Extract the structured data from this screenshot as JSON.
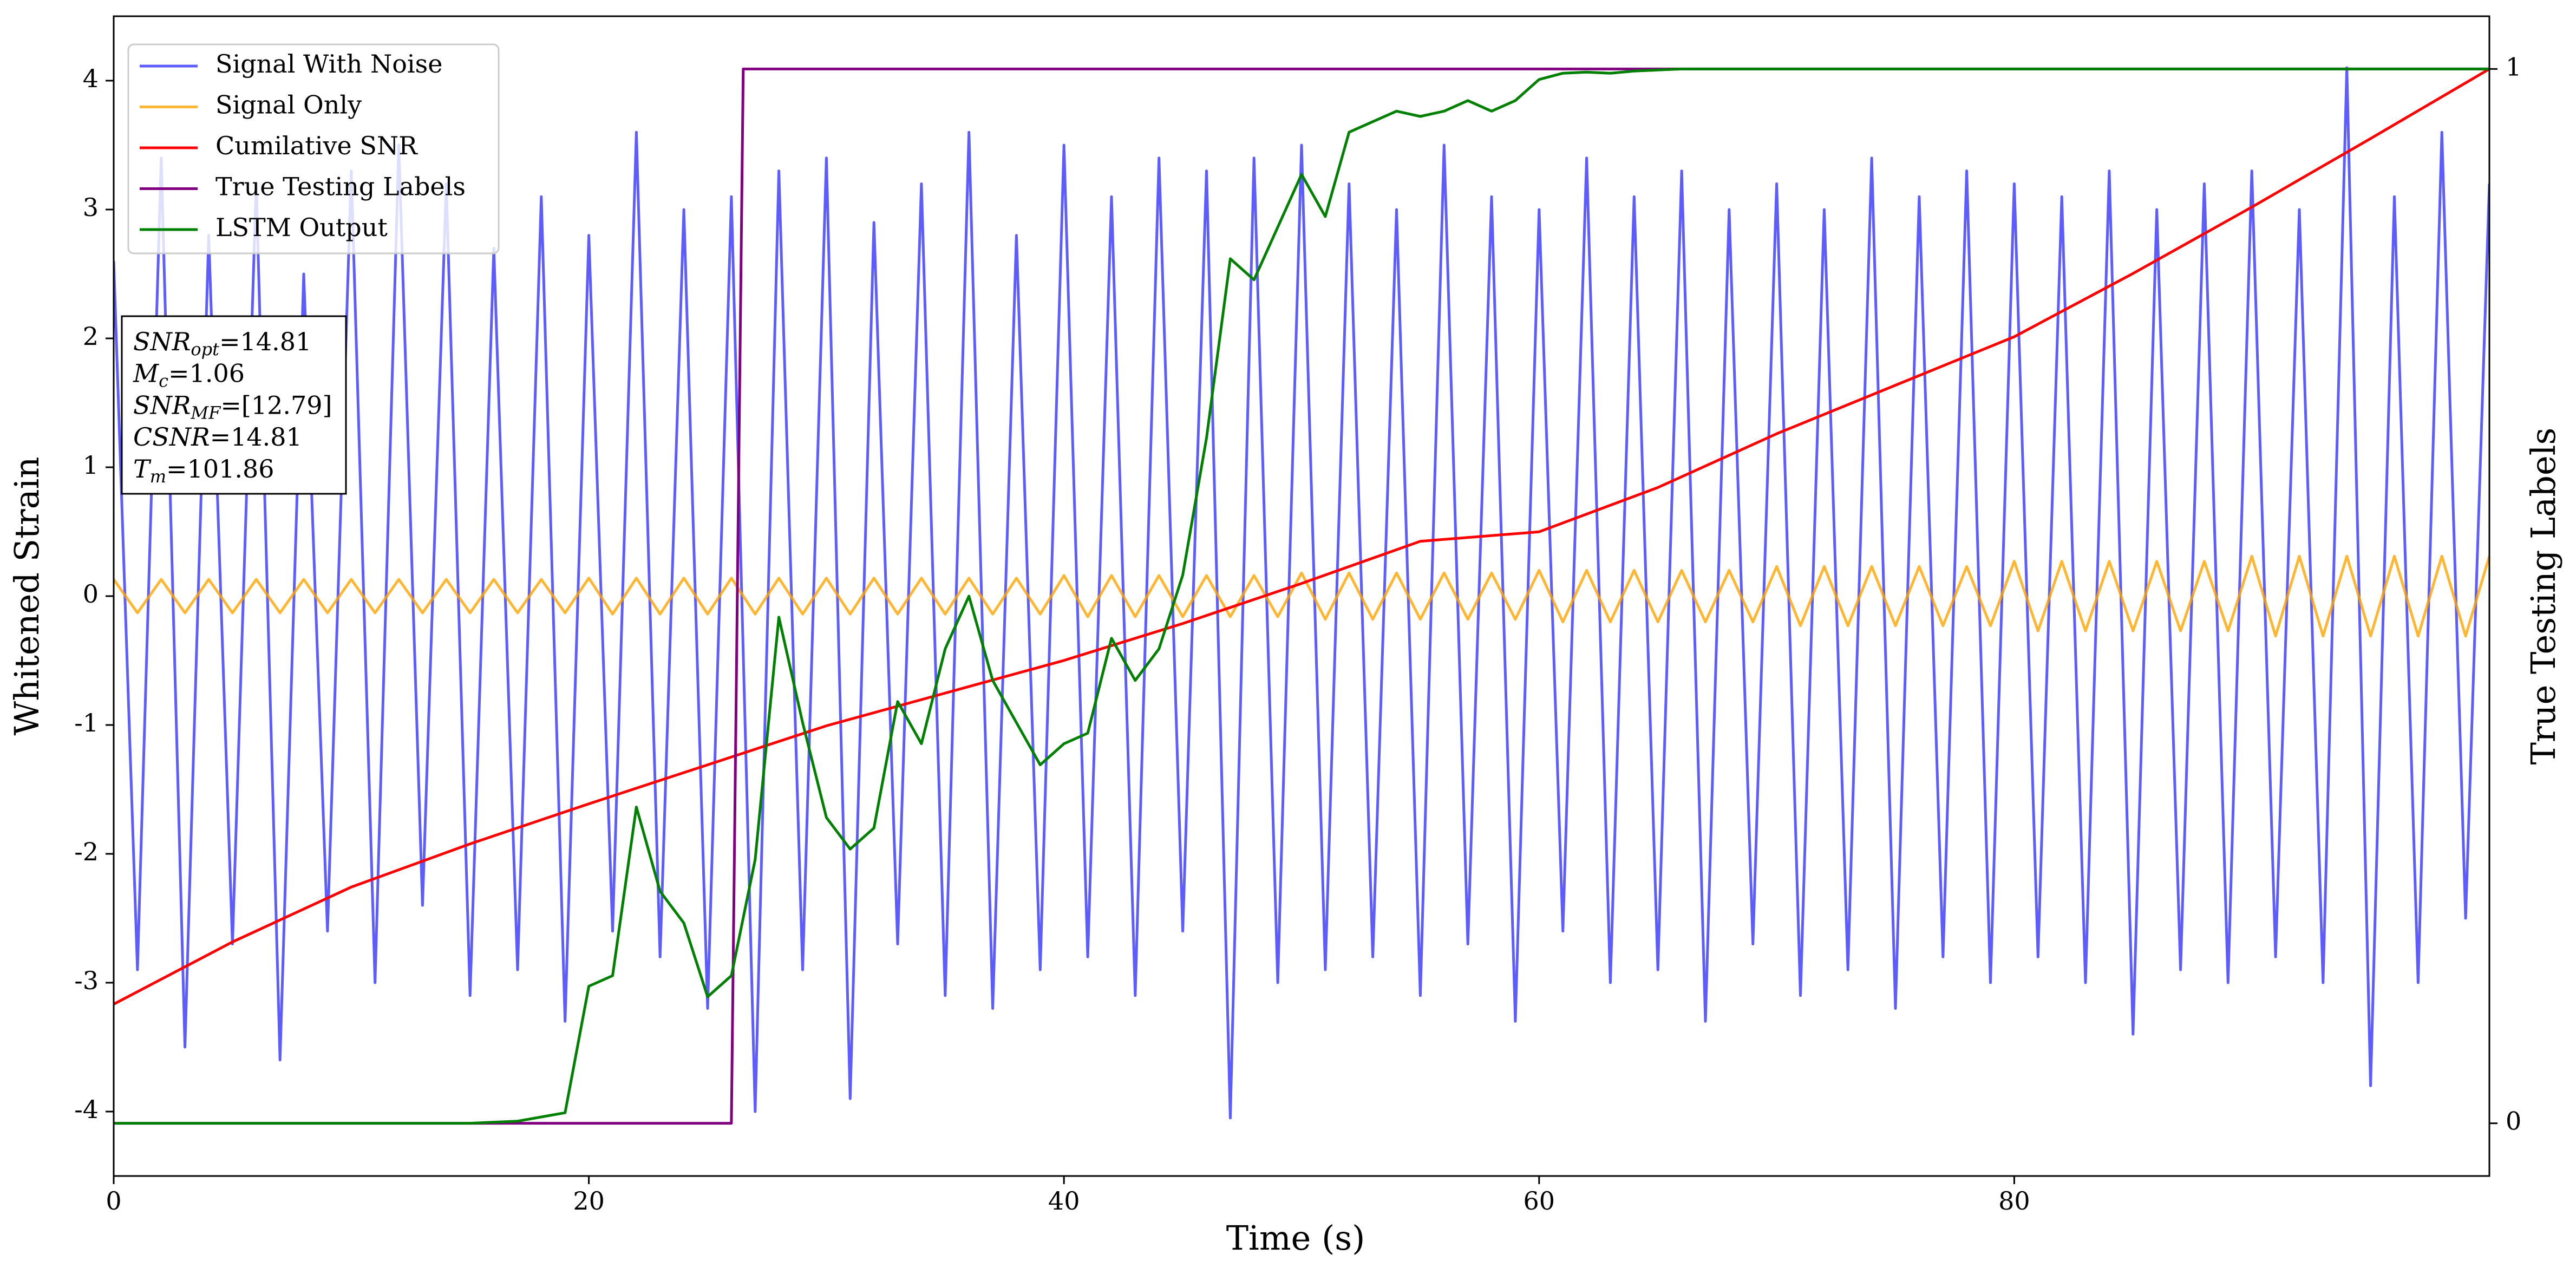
{
  "chart_data": {
    "type": "line",
    "xlabel": "Time (s)",
    "ylabel": "Whitened Strain",
    "y2label": "True Testing Labels",
    "xlim": [
      0,
      100
    ],
    "ylim": [
      -4.5,
      4.5
    ],
    "y2lim": [
      -0.05,
      1.05
    ],
    "xticks": [
      0,
      20,
      40,
      60,
      80
    ],
    "yticks": [
      -4,
      -3,
      -2,
      -1,
      0,
      1,
      2,
      3,
      4
    ],
    "y2ticks": [
      0,
      1
    ],
    "grid": false,
    "legend": "upper left",
    "x": [
      0,
      1,
      2,
      3,
      4,
      5,
      6,
      7,
      8,
      9,
      10,
      11,
      12,
      13,
      14,
      15,
      16,
      17,
      18,
      19,
      20,
      21,
      22,
      23,
      24,
      25,
      26,
      27,
      28,
      29,
      30,
      31,
      32,
      33,
      34,
      35,
      36,
      37,
      38,
      39,
      40,
      41,
      42,
      43,
      44,
      45,
      46,
      47,
      48,
      49,
      50,
      51,
      52,
      53,
      54,
      55,
      56,
      57,
      58,
      59,
      60,
      61,
      62,
      63,
      64,
      65,
      66,
      67,
      68,
      69,
      70,
      71,
      72,
      73,
      74,
      75,
      76,
      77,
      78,
      79,
      80,
      81,
      82,
      83,
      84,
      85,
      86,
      87,
      88,
      89,
      90,
      91,
      92,
      93,
      94,
      95,
      96,
      97,
      98,
      99,
      100
    ],
    "series": [
      {
        "name": "Signal With Noise",
        "color": "#3333ff",
        "values": [
          2.6,
          -2.9,
          3.4,
          -3.5,
          2.8,
          -2.7,
          3.2,
          -3.6,
          2.5,
          -2.6,
          3.3,
          -3.0,
          3.5,
          -2.4,
          3.2,
          -3.1,
          2.7,
          -2.9,
          3.1,
          -3.3,
          2.8,
          -2.6,
          3.6,
          -2.8,
          3.0,
          -3.2,
          3.1,
          -4.0,
          3.3,
          -2.9,
          3.4,
          -3.9,
          2.9,
          -2.7,
          3.2,
          -3.1,
          3.6,
          -3.2,
          2.8,
          -2.9,
          3.5,
          -2.8,
          3.1,
          -3.1,
          3.4,
          -2.6,
          3.3,
          -4.05,
          3.4,
          -3.0,
          3.5,
          -2.9,
          3.2,
          -2.8,
          3.0,
          -3.1,
          3.5,
          -2.7,
          3.1,
          -3.3,
          3.0,
          -2.6,
          3.4,
          -3.0,
          3.1,
          -2.9,
          3.3,
          -3.3,
          3.0,
          -2.7,
          3.2,
          -3.1,
          3.0,
          -2.9,
          3.4,
          -3.2,
          3.1,
          -2.8,
          3.3,
          -3.0,
          3.2,
          -2.8,
          3.1,
          -3.0,
          3.3,
          -3.4,
          3.0,
          -2.9,
          3.2,
          -3.0,
          3.3,
          -2.8,
          3.0,
          -3.0,
          4.1,
          -3.8,
          3.1,
          -3.0,
          3.6,
          -2.5,
          3.2
        ]
      },
      {
        "name": "Signal Only",
        "color": "#ffa500",
        "values": [
          0.13,
          -0.13,
          0.13,
          -0.13,
          0.13,
          -0.13,
          0.13,
          -0.13,
          0.13,
          -0.13,
          0.13,
          -0.13,
          0.13,
          -0.13,
          0.13,
          -0.13,
          0.13,
          -0.13,
          0.13,
          -0.13,
          0.14,
          -0.14,
          0.14,
          -0.14,
          0.14,
          -0.14,
          0.14,
          -0.14,
          0.14,
          -0.14,
          0.14,
          -0.14,
          0.14,
          -0.14,
          0.14,
          -0.14,
          0.14,
          -0.14,
          0.14,
          -0.14,
          0.16,
          -0.16,
          0.16,
          -0.16,
          0.16,
          -0.16,
          0.16,
          -0.16,
          0.16,
          -0.16,
          0.18,
          -0.18,
          0.18,
          -0.18,
          0.18,
          -0.18,
          0.18,
          -0.18,
          0.18,
          -0.18,
          0.2,
          -0.2,
          0.2,
          -0.2,
          0.2,
          -0.2,
          0.2,
          -0.2,
          0.2,
          -0.2,
          0.23,
          -0.23,
          0.23,
          -0.23,
          0.23,
          -0.23,
          0.23,
          -0.23,
          0.23,
          -0.23,
          0.27,
          -0.27,
          0.27,
          -0.27,
          0.27,
          -0.27,
          0.27,
          -0.27,
          0.27,
          -0.27,
          0.31,
          -0.31,
          0.31,
          -0.31,
          0.31,
          -0.31,
          0.31,
          -0.31,
          0.31,
          -0.31,
          0.31
        ]
      },
      {
        "name": "Cumilative SNR",
        "color": "#ff0000",
        "axis": "y2",
        "x": [
          0,
          5,
          10,
          15,
          20,
          25,
          30,
          35,
          40,
          45,
          50,
          55,
          60,
          65,
          70,
          75,
          80,
          85,
          90,
          95,
          100
        ],
        "values": [
          0.113,
          0.172,
          0.224,
          0.265,
          0.303,
          0.34,
          0.377,
          0.408,
          0.439,
          0.474,
          0.512,
          0.552,
          0.561,
          0.603,
          0.654,
          0.7,
          0.746,
          0.806,
          0.869,
          0.934,
          1.0
        ]
      },
      {
        "name": "True Testing Labels",
        "color": "#800080",
        "axis": "y2",
        "x": [
          0,
          26,
          26.5,
          100
        ],
        "values": [
          0,
          0,
          1,
          1
        ]
      },
      {
        "name": "LSTM Output",
        "color": "#008000",
        "axis": "y2",
        "x": [
          0,
          15,
          17,
          19,
          20,
          21,
          22,
          23,
          24,
          25,
          26,
          27,
          28,
          29,
          30,
          31,
          32,
          33,
          34,
          35,
          36,
          37,
          38,
          39,
          40,
          41,
          42,
          43,
          44,
          45,
          46,
          47,
          48,
          49,
          50,
          51,
          52,
          53,
          54,
          55,
          56,
          57,
          58,
          59,
          60,
          61,
          62,
          63,
          64,
          65,
          66,
          100
        ],
        "values": [
          0,
          0,
          0.002,
          0.01,
          0.13,
          0.14,
          0.3,
          0.22,
          0.19,
          0.12,
          0.14,
          0.25,
          0.48,
          0.38,
          0.29,
          0.26,
          0.28,
          0.4,
          0.36,
          0.45,
          0.5,
          0.42,
          0.38,
          0.34,
          0.36,
          0.37,
          0.46,
          0.42,
          0.45,
          0.52,
          0.65,
          0.82,
          0.8,
          0.85,
          0.9,
          0.86,
          0.94,
          0.95,
          0.96,
          0.955,
          0.96,
          0.97,
          0.96,
          0.97,
          0.99,
          0.996,
          0.997,
          0.996,
          0.998,
          0.999,
          1,
          1
        ]
      }
    ],
    "annotations": [
      {
        "symbol": "SNR",
        "subscript": "opt",
        "text": "=14.81"
      },
      {
        "symbol": "M",
        "subscript": "c",
        "text": "=1.06"
      },
      {
        "symbol": "SNR",
        "subscript": "MF",
        "text": "=[12.79]"
      },
      {
        "symbol": "CSNR",
        "subscript": null,
        "text": "=14.81"
      },
      {
        "symbol": "T",
        "subscript": "m",
        "text": "=101.86"
      }
    ]
  }
}
